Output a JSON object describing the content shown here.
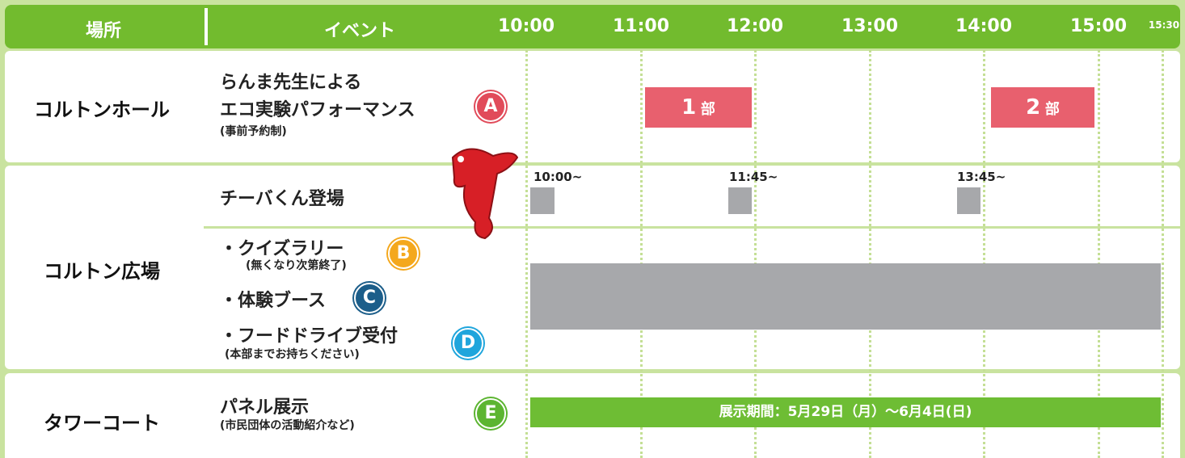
{
  "header": {
    "place": "場所",
    "event": "イベント",
    "times": [
      "10:00",
      "11:00",
      "12:00",
      "13:00",
      "14:00",
      "15:00",
      "15:30"
    ]
  },
  "venues": [
    "コルトンホール",
    "コルトン広場",
    "タワーコート"
  ],
  "events": [
    {
      "lines": [
        "らんま先生による",
        "エコ実験パフォーマンス"
      ],
      "note": "(事前予約制)",
      "badge": "A",
      "sessions": [
        {
          "number": "1",
          "unit": "部"
        },
        {
          "number": "2",
          "unit": "部"
        }
      ]
    },
    {
      "title": "チーバくん登場",
      "times": [
        "10:00~",
        "11:45~",
        "13:45~"
      ]
    },
    {
      "items": [
        {
          "title": "・クイズラリー",
          "note": "(無くなり次第終了)",
          "badge": "B"
        },
        {
          "title": "・体験ブース",
          "badge": "C"
        },
        {
          "title": "・フードドライブ受付",
          "note": "(本部までお持ちください)",
          "badge": "D"
        }
      ]
    },
    {
      "title": "パネル展示",
      "note": "(市民団体の活動紹介など)",
      "badge": "E",
      "period": "展示期間：5月29日（月）～6月4日(日)"
    }
  ]
}
